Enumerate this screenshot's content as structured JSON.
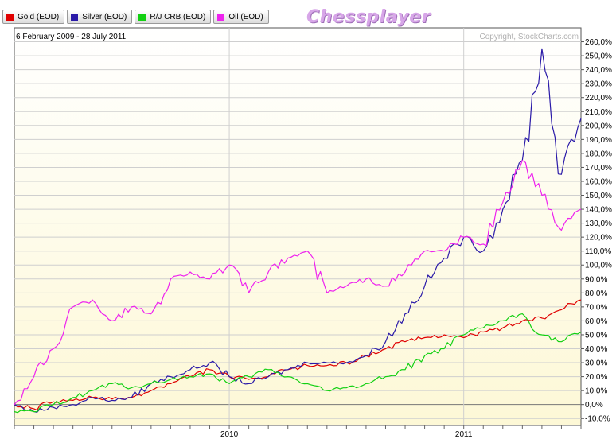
{
  "legend": [
    {
      "label": "Gold (EOD)",
      "color": "#e00000"
    },
    {
      "label": "Silver (EOD)",
      "color": "#2a1aa8"
    },
    {
      "label": "R/J CRB (EOD)",
      "color": "#12d012"
    },
    {
      "label": "Oil (EOD)",
      "color": "#ee22ee"
    }
  ],
  "brand": "Chessplayer",
  "chart_data": {
    "type": "line",
    "date_range": "6 February 2009 - 28 July 2011",
    "copyright": "Copyright, StockCharts.com",
    "ylim": [
      -15,
      270
    ],
    "y_ticks": [
      -10,
      0,
      10,
      20,
      30,
      40,
      50,
      60,
      70,
      80,
      90,
      100,
      110,
      120,
      130,
      140,
      150,
      160,
      170,
      180,
      190,
      200,
      210,
      220,
      230,
      240,
      250,
      260
    ],
    "y_tick_labels": [
      "-10,0%",
      "0,0%",
      "10,0%",
      "20,0%",
      "30,0%",
      "40,0%",
      "50,0%",
      "60,0%",
      "70,0%",
      "80,0%",
      "90,0%",
      "100,0%",
      "110,0%",
      "120,0%",
      "130,0%",
      "140,0%",
      "150,0%",
      "160,0%",
      "170,0%",
      "180,0%",
      "190,0%",
      "200,0%",
      "210,0%",
      "220,0%",
      "230,0%",
      "240,0%",
      "250,0%",
      "260,0%"
    ],
    "x_labels": [
      {
        "label": "2010",
        "x": "2010-01"
      },
      {
        "label": "2011",
        "x": "2011-01"
      }
    ],
    "x": [
      "2009-02",
      "2009-03",
      "2009-04",
      "2009-05",
      "2009-06",
      "2009-07",
      "2009-08",
      "2009-09",
      "2009-10",
      "2009-11",
      "2009-12",
      "2010-01",
      "2010-02",
      "2010-03",
      "2010-04",
      "2010-05",
      "2010-06",
      "2010-07",
      "2010-08",
      "2010-09",
      "2010-10",
      "2010-11",
      "2010-12",
      "2011-01",
      "2011-02",
      "2011-03",
      "2011-04",
      "2011-05",
      "2011-06",
      "2011-07"
    ],
    "grid": true,
    "series": [
      {
        "name": "Gold (EOD)",
        "color": "#e00000",
        "values": [
          0,
          -3,
          2,
          3,
          5,
          4,
          5,
          10,
          15,
          20,
          25,
          20,
          18,
          20,
          25,
          28,
          28,
          30,
          35,
          40,
          45,
          48,
          50,
          48,
          52,
          55,
          60,
          62,
          68,
          75
        ]
      },
      {
        "name": "Silver (EOD)",
        "color": "#2a1aa8",
        "values": [
          0,
          -5,
          -2,
          0,
          5,
          3,
          5,
          15,
          20,
          25,
          30,
          20,
          15,
          20,
          25,
          30,
          30,
          30,
          35,
          45,
          65,
          85,
          105,
          120,
          110,
          140,
          175,
          255,
          165,
          205
        ]
      },
      {
        "name": "R/J CRB (EOD)",
        "color": "#12d012",
        "values": [
          -5,
          -5,
          0,
          5,
          10,
          15,
          12,
          15,
          18,
          20,
          22,
          15,
          20,
          25,
          20,
          15,
          10,
          12,
          15,
          20,
          25,
          35,
          40,
          50,
          55,
          60,
          65,
          50,
          45,
          52
        ]
      },
      {
        "name": "Oil (EOD)",
        "color": "#ee22ee",
        "values": [
          0,
          20,
          40,
          70,
          75,
          60,
          70,
          65,
          90,
          95,
          90,
          100,
          80,
          95,
          105,
          110,
          80,
          85,
          90,
          85,
          95,
          110,
          110,
          120,
          115,
          145,
          175,
          150,
          125,
          140
        ]
      }
    ]
  }
}
